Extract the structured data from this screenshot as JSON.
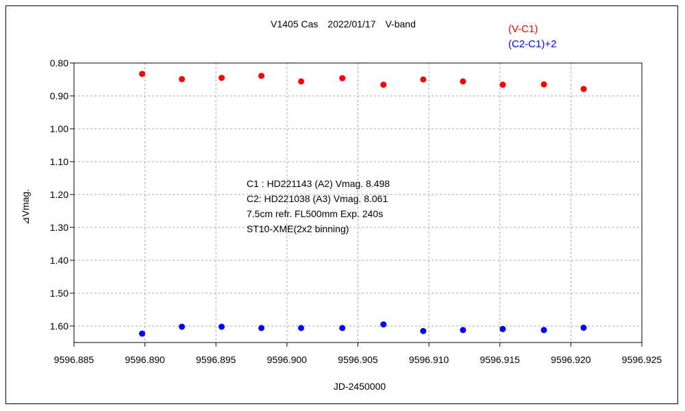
{
  "chart_data": {
    "type": "scatter",
    "title": "V1405 Cas　2022/01/17　V-band",
    "xlabel": "JD-2450000",
    "ylabel": "⊿Vmag.",
    "xlim": [
      9596.885,
      9596.925
    ],
    "ylim": [
      0.8,
      1.65
    ],
    "y_inverted": true,
    "grid": true,
    "legend_position": "top-right",
    "x_ticks": [
      "9596.885",
      "9596.890",
      "9596.895",
      "9596.900",
      "9596.905",
      "9596.910",
      "9596.915",
      "9596.920",
      "9596.925"
    ],
    "y_ticks": [
      "0.80",
      "0.90",
      "1.00",
      "1.10",
      "1.20",
      "1.30",
      "1.40",
      "1.50",
      "1.60"
    ],
    "annotations": [
      "C1 : HD221143 (A2) Vmag. 8.498",
      "C2: HD221038 (A3) Vmag. 8.061",
      "7.5cm refr. FL500mm Exp. 240s",
      "ST10-XME(2x2 binning)"
    ],
    "series": [
      {
        "name": "(V-C1)",
        "color": "#ff0000",
        "x": [
          9596.8898,
          9596.8926,
          9596.8954,
          9596.8982,
          9596.901,
          9596.9039,
          9596.9068,
          9596.9096,
          9596.9124,
          9596.9152,
          9596.9181,
          9596.9209
        ],
        "y": [
          0.833,
          0.849,
          0.845,
          0.839,
          0.856,
          0.846,
          0.866,
          0.85,
          0.856,
          0.866,
          0.865,
          0.879
        ]
      },
      {
        "name": "(C2-C1)+2",
        "color": "#0000ff",
        "x": [
          9596.8898,
          9596.8926,
          9596.8954,
          9596.8982,
          9596.901,
          9596.9039,
          9596.9068,
          9596.9096,
          9596.9124,
          9596.9152,
          9596.9181,
          9596.9209
        ],
        "y": [
          1.623,
          1.602,
          1.602,
          1.606,
          1.606,
          1.606,
          1.595,
          1.615,
          1.612,
          1.609,
          1.612,
          1.605
        ]
      }
    ]
  }
}
